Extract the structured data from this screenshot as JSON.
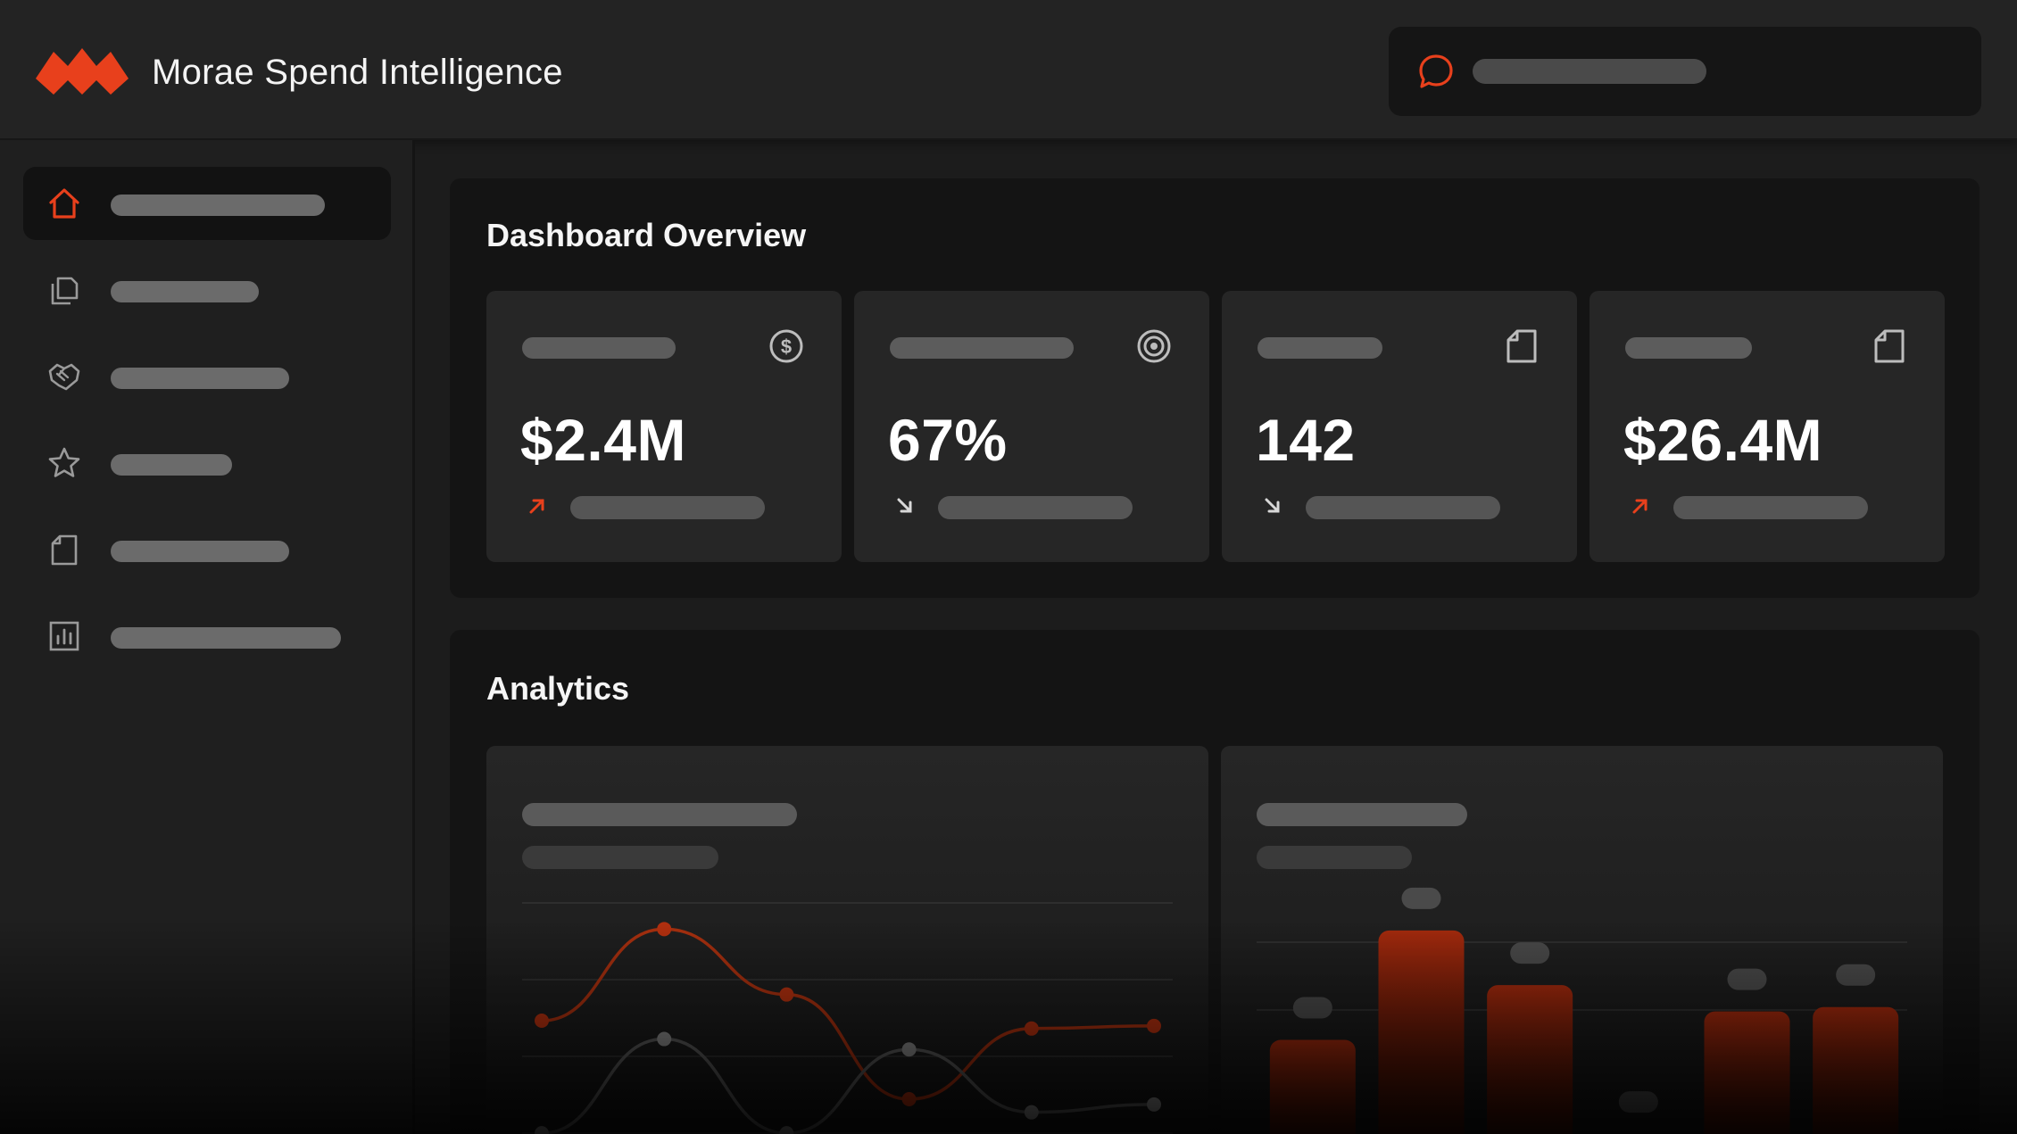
{
  "header": {
    "app_title": "Morae Spend Intelligence",
    "search_icon": "chat-bubble-icon"
  },
  "sidebar": {
    "items": [
      {
        "icon": "home-icon",
        "active": true
      },
      {
        "icon": "documents-icon",
        "active": false
      },
      {
        "icon": "handshake-icon",
        "active": false
      },
      {
        "icon": "star-icon",
        "active": false
      },
      {
        "icon": "document-icon",
        "active": false
      },
      {
        "icon": "bar-chart-icon",
        "active": false
      }
    ]
  },
  "dashboard": {
    "title": "Dashboard Overview",
    "kpis": [
      {
        "value": "$2.4M",
        "icon": "dollar-icon",
        "trend": "up"
      },
      {
        "value": "67%",
        "icon": "target-icon",
        "trend": "down"
      },
      {
        "value": "142",
        "icon": "document-icon",
        "trend": "down"
      },
      {
        "value": "$26.4M",
        "icon": "document-icon",
        "trend": "up"
      }
    ]
  },
  "analytics": {
    "title": "Analytics"
  },
  "colors": {
    "accent": "#e8401c",
    "background": "#1c1c1c",
    "panel": "#141414",
    "card": "#262626"
  },
  "chart_data": [
    {
      "type": "line",
      "x": [
        1,
        2,
        3,
        4,
        5,
        6
      ],
      "series": [
        {
          "values": [
            45,
            80,
            55,
            15,
            42,
            43
          ]
        },
        {
          "values": [
            2,
            38,
            2,
            34,
            10,
            13
          ]
        }
      ],
      "ylim": [
        0,
        90
      ],
      "grid": true
    },
    {
      "type": "bar",
      "categories": [
        "1",
        "2",
        "3",
        "4",
        "5",
        "6"
      ],
      "values": [
        45,
        95,
        70,
        2,
        58,
        60
      ],
      "ylim": [
        0,
        110
      ],
      "grid": true
    }
  ]
}
